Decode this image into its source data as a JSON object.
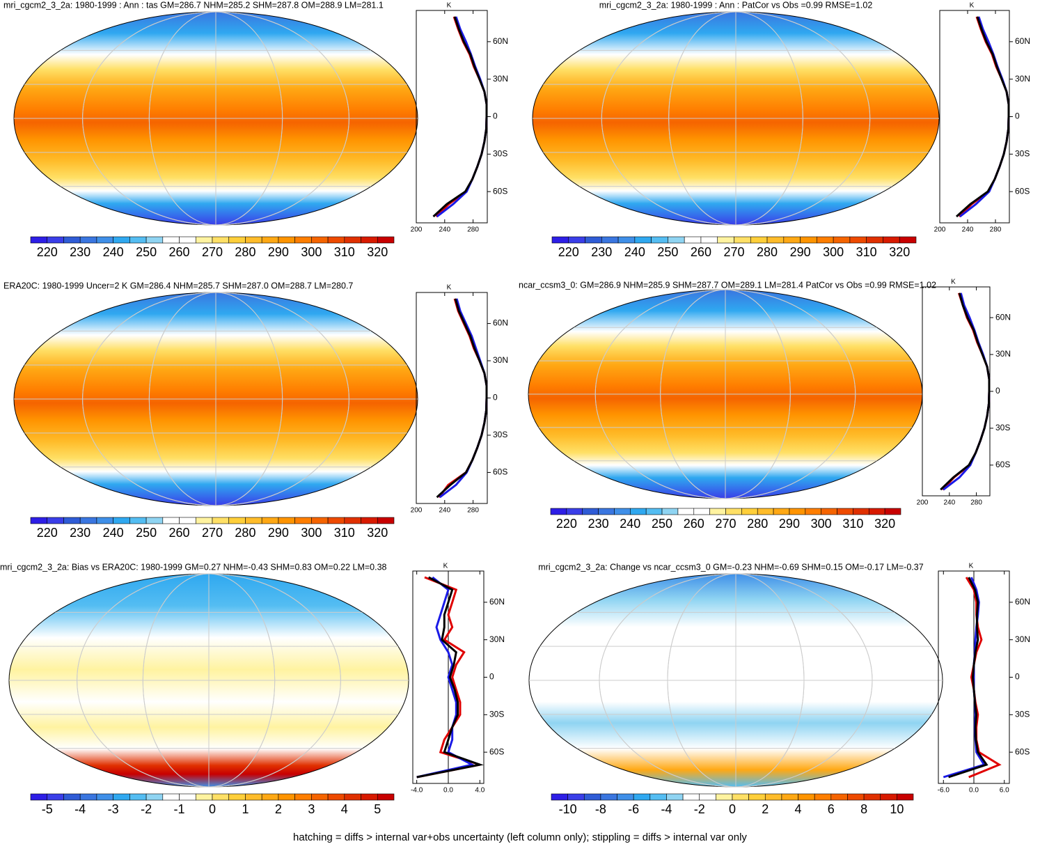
{
  "chart_data": [
    {
      "type": "line",
      "title": "mri_cgcm2_3_2a: 1980-1999 : Ann : tas GM=286.7 NHM=285.2 SHM=287.8 OM=288.9 LM=281.1",
      "ylabel": "K",
      "x": [
        -80,
        -70,
        -60,
        -50,
        -40,
        -30,
        -20,
        -10,
        0,
        10,
        20,
        30,
        40,
        50,
        60,
        70,
        80
      ],
      "series": [
        {
          "color": "#e00000",
          "values": [
            228,
            246,
            270,
            279,
            286,
            292,
            296,
            298.5,
            299,
            299,
            296,
            289,
            281,
            275,
            266,
            259,
            253
          ]
        },
        {
          "color": "#1a1ae6",
          "values": [
            229,
            252,
            271,
            279,
            286,
            292,
            296,
            298.5,
            299,
            299,
            296,
            290,
            283,
            277,
            270,
            262,
            256
          ]
        },
        {
          "color": "#000000",
          "values": [
            224,
            243,
            269,
            279,
            286,
            292,
            296,
            298.5,
            299,
            299,
            296,
            289,
            282,
            276,
            267,
            260,
            254
          ]
        }
      ],
      "xlim": [
        -85,
        85
      ],
      "xticks": [
        {
          "value": -60,
          "label": "60S"
        },
        {
          "value": -30,
          "label": "30S"
        },
        0,
        {
          "value": 30,
          "label": "30N"
        },
        {
          "value": 60,
          "label": "60N"
        }
      ],
      "ylim": [
        200,
        300
      ],
      "yticks": [
        200,
        240,
        280
      ],
      "colorbar": {
        "ticks": [
          220,
          230,
          240,
          250,
          260,
          270,
          280,
          290,
          300,
          310,
          320
        ],
        "colors": [
          "#2d1ee6",
          "#3a3ee8",
          "#2f5cd6",
          "#3a76e0",
          "#3f8fe8",
          "#2fa8f0",
          "#54bdf2",
          "#8fd4f2",
          "#ffffff",
          "#ffffff",
          "#fff3a0",
          "#ffe066",
          "#ffcf3a",
          "#ffbc2a",
          "#ffa814",
          "#ff9400",
          "#ff7e00",
          "#f56400",
          "#ee4a00",
          "#e03000",
          "#d81a00",
          "#c80000"
        ]
      }
    },
    {
      "type": "line",
      "title": "mri_cgcm2_3_2a: 1980-1999 : Ann : PatCor vs Obs =0.99 RMSE=1.02",
      "ylabel": "K",
      "x": [
        -80,
        -70,
        -60,
        -50,
        -40,
        -30,
        -20,
        -10,
        0,
        10,
        20,
        30,
        40,
        50,
        60,
        70,
        80
      ],
      "series": [
        {
          "color": "#e00000",
          "values": [
            228,
            246,
            270,
            279,
            286,
            292,
            296,
            298.5,
            299,
            299,
            296,
            289,
            281,
            275,
            266,
            259,
            253
          ]
        },
        {
          "color": "#1a1ae6",
          "values": [
            229,
            252,
            271,
            279,
            286,
            292,
            296,
            298.5,
            299,
            299,
            296,
            290,
            283,
            277,
            270,
            262,
            256
          ]
        },
        {
          "color": "#000000",
          "values": [
            224,
            244,
            269,
            279,
            286,
            292,
            296,
            298.5,
            299,
            299,
            296,
            289,
            282,
            276,
            267,
            260,
            254
          ]
        }
      ],
      "xlim": [
        -85,
        85
      ],
      "xticks": [
        {
          "value": -60,
          "label": "60S"
        },
        {
          "value": -30,
          "label": "30S"
        },
        0,
        {
          "value": 30,
          "label": "30N"
        },
        {
          "value": 60,
          "label": "60N"
        }
      ],
      "ylim": [
        200,
        300
      ],
      "yticks": [
        200,
        240,
        280
      ],
      "colorbar": {
        "ticks": [
          220,
          230,
          240,
          250,
          260,
          270,
          280,
          290,
          300,
          310,
          320
        ],
        "colors": [
          "#2d1ee6",
          "#3a3ee8",
          "#2f5cd6",
          "#3a76e0",
          "#3f8fe8",
          "#2fa8f0",
          "#54bdf2",
          "#8fd4f2",
          "#ffffff",
          "#ffffff",
          "#fff3a0",
          "#ffe066",
          "#ffcf3a",
          "#ffbc2a",
          "#ffa814",
          "#ff9400",
          "#ff7e00",
          "#f56400",
          "#ee4a00",
          "#e03000",
          "#d81a00",
          "#c80000"
        ]
      }
    },
    {
      "type": "line",
      "title": "ERA20C: 1980-1999 Uncer=2 K GM=286.4 NHM=285.7 SHM=287.0 OM=288.7 LM=280.7",
      "ylabel": "K",
      "x": [
        -80,
        -70,
        -60,
        -50,
        -40,
        -30,
        -20,
        -10,
        0,
        10,
        20,
        30,
        40,
        50,
        60,
        70,
        80
      ],
      "series": [
        {
          "color": "#e00000",
          "values": [
            232,
            245,
            270,
            279,
            286,
            292,
            296,
            298.5,
            299,
            299,
            296,
            289,
            281,
            275,
            267,
            259,
            254
          ]
        },
        {
          "color": "#1a1ae6",
          "values": [
            233,
            256,
            271,
            279,
            286,
            292,
            296,
            298.5,
            299,
            299,
            296,
            290,
            284,
            278,
            270,
            262,
            257
          ]
        },
        {
          "color": "#000000",
          "values": [
            229,
            248,
            270,
            279,
            286,
            292,
            296,
            298.5,
            299,
            299,
            296,
            289,
            282,
            276,
            268,
            260,
            255
          ]
        }
      ],
      "xlim": [
        -85,
        85
      ],
      "xticks": [
        {
          "value": -60,
          "label": "60S"
        },
        {
          "value": -30,
          "label": "30S"
        },
        0,
        {
          "value": 30,
          "label": "30N"
        },
        {
          "value": 60,
          "label": "60N"
        }
      ],
      "ylim": [
        200,
        300
      ],
      "yticks": [
        200,
        240,
        280
      ],
      "colorbar": {
        "ticks": [
          220,
          230,
          240,
          250,
          260,
          270,
          280,
          290,
          300,
          310,
          320
        ],
        "colors": [
          "#2d1ee6",
          "#3a3ee8",
          "#2f5cd6",
          "#3a76e0",
          "#3f8fe8",
          "#2fa8f0",
          "#54bdf2",
          "#8fd4f2",
          "#ffffff",
          "#ffffff",
          "#fff3a0",
          "#ffe066",
          "#ffcf3a",
          "#ffbc2a",
          "#ffa814",
          "#ff9400",
          "#ff7e00",
          "#f56400",
          "#ee4a00",
          "#e03000",
          "#d81a00",
          "#c80000"
        ]
      }
    },
    {
      "type": "line",
      "title": "ncar_ccsm3_0: GM=286.9 NHM=285.9 SHM=287.7 OM=289.1 LM=281.4 PatCor vs Obs =0.99 RMSE=1.02",
      "ylabel": "K",
      "x": [
        -80,
        -70,
        -60,
        -50,
        -40,
        -30,
        -20,
        -10,
        0,
        10,
        20,
        30,
        40,
        50,
        60,
        70,
        80
      ],
      "series": [
        {
          "color": "#e00000",
          "values": [
            230,
            247,
            270,
            279,
            286,
            292,
            296,
            298.5,
            299,
            299,
            296,
            289,
            281,
            275,
            266,
            260,
            254
          ]
        },
        {
          "color": "#1a1ae6",
          "values": [
            231,
            255,
            271,
            279,
            286,
            292,
            296,
            298.5,
            299,
            299,
            296,
            290,
            283,
            277,
            270,
            262,
            257
          ]
        },
        {
          "color": "#000000",
          "values": [
            227,
            246,
            269,
            279,
            286,
            292,
            296,
            298.5,
            299,
            299,
            296,
            289,
            282,
            276,
            267,
            260,
            255
          ]
        }
      ],
      "xlim": [
        -85,
        85
      ],
      "xticks": [
        {
          "value": -60,
          "label": "60S"
        },
        {
          "value": -30,
          "label": "30S"
        },
        0,
        {
          "value": 30,
          "label": "30N"
        },
        {
          "value": 60,
          "label": "60N"
        }
      ],
      "ylim": [
        200,
        300
      ],
      "yticks": [
        200,
        240,
        280
      ],
      "colorbar": {
        "ticks": [
          220,
          230,
          240,
          250,
          260,
          270,
          280,
          290,
          300,
          310,
          320
        ],
        "colors": [
          "#2d1ee6",
          "#3a3ee8",
          "#2f5cd6",
          "#3a76e0",
          "#3f8fe8",
          "#2fa8f0",
          "#54bdf2",
          "#8fd4f2",
          "#ffffff",
          "#ffffff",
          "#fff3a0",
          "#ffe066",
          "#ffcf3a",
          "#ffbc2a",
          "#ffa814",
          "#ff9400",
          "#ff7e00",
          "#f56400",
          "#ee4a00",
          "#e03000",
          "#d81a00",
          "#c80000"
        ]
      }
    },
    {
      "type": "line",
      "title": "mri_cgcm2_3_2a: Bias vs ERA20C: 1980-1999 GM=0.27 NHM=-0.43 SHM=0.83 OM=0.22 LM=0.38",
      "ylabel": "K",
      "x": [
        -80,
        -70,
        -60,
        -50,
        -40,
        -30,
        -20,
        -10,
        0,
        10,
        20,
        30,
        40,
        50,
        60,
        70,
        80
      ],
      "series": [
        {
          "color": "#e00000",
          "values": [
            -4,
            4,
            -1,
            -0.5,
            0.5,
            1.5,
            1.5,
            1,
            0.5,
            1,
            2,
            -0.5,
            0.5,
            0,
            0.5,
            1,
            -3
          ]
        },
        {
          "color": "#1a1ae6",
          "values": [
            -4,
            3,
            0,
            0.5,
            0.5,
            1,
            1,
            0.5,
            0,
            0.5,
            0,
            -1,
            -1.5,
            -1,
            -0.5,
            0,
            -2
          ]
        },
        {
          "color": "#000000",
          "values": [
            -4,
            4,
            -0.5,
            0,
            0.5,
            1.2,
            1.2,
            0.8,
            0.2,
            0.7,
            1,
            -0.8,
            -0.5,
            -0.5,
            0,
            0.5,
            -2.5
          ]
        }
      ],
      "xlim": [
        -85,
        85
      ],
      "xticks": [
        {
          "value": -60,
          "label": "60S"
        },
        {
          "value": -30,
          "label": "30S"
        },
        0,
        {
          "value": 30,
          "label": "30N"
        },
        {
          "value": 60,
          "label": "60N"
        }
      ],
      "ylim": [
        -4.5,
        4.5
      ],
      "yticks": [
        {
          "value": -4,
          "label": "-4.0"
        },
        {
          "value": 0,
          "label": "0.0"
        },
        {
          "value": 4,
          "label": "4.0"
        }
      ],
      "colorbar": {
        "ticks": [
          -5,
          -4,
          -3,
          -2,
          -1,
          0,
          1,
          2,
          3,
          4,
          5
        ],
        "colors": [
          "#2d1ee6",
          "#3a3ee8",
          "#2f5cd6",
          "#3a76e0",
          "#3f8fe8",
          "#2fa8f0",
          "#54bdf2",
          "#8fd4f2",
          "#ffffff",
          "#ffffff",
          "#fff3a0",
          "#ffe066",
          "#ffcf3a",
          "#ffbc2a",
          "#ffa814",
          "#ff9400",
          "#ff7e00",
          "#f56400",
          "#ee4a00",
          "#e03000",
          "#d81a00",
          "#c80000"
        ]
      }
    },
    {
      "type": "line",
      "title": "mri_cgcm2_3_2a: Change vs ncar_ccsm3_0 GM=-0.23 NHM=-0.69 SHM=0.15 OM=-0.17 LM=-0.37",
      "ylabel": "K",
      "x": [
        -80,
        -70,
        -60,
        -50,
        -40,
        -30,
        -20,
        -10,
        0,
        10,
        20,
        30,
        40,
        50,
        60,
        70,
        80
      ],
      "series": [
        {
          "color": "#e00000",
          "values": [
            -1,
            5,
            1,
            0.5,
            0.5,
            0.8,
            0.3,
            0,
            -0.5,
            0,
            0.5,
            1.5,
            0.8,
            0.5,
            0.5,
            0,
            -1.5
          ]
        },
        {
          "color": "#1a1ae6",
          "values": [
            -6,
            2,
            0.5,
            0.3,
            0.2,
            0.3,
            0.2,
            0,
            0,
            0,
            0.2,
            0.3,
            0.5,
            0.8,
            1,
            0.5,
            -0.5
          ]
        },
        {
          "color": "#000000",
          "values": [
            -5,
            2.5,
            0.8,
            0.4,
            0.3,
            0.5,
            0.2,
            0,
            -0.2,
            0,
            0.3,
            0.8,
            0.6,
            0.6,
            0.8,
            0.2,
            -1
          ]
        }
      ],
      "xlim": [
        -85,
        85
      ],
      "xticks": [
        {
          "value": -60,
          "label": "60S"
        },
        {
          "value": -30,
          "label": "30S"
        },
        0,
        {
          "value": 30,
          "label": "30N"
        },
        {
          "value": 60,
          "label": "60N"
        }
      ],
      "ylim": [
        -7,
        7
      ],
      "yticks": [
        {
          "value": -6,
          "label": "-6.0"
        },
        {
          "value": 0,
          "label": "0.0"
        },
        {
          "value": 6,
          "label": "6.0"
        }
      ],
      "colorbar": {
        "ticks": [
          -10,
          -8,
          -6,
          -4,
          -2,
          0,
          2,
          4,
          6,
          8,
          10
        ],
        "colors": [
          "#2d1ee6",
          "#3a3ee8",
          "#2f5cd6",
          "#3a76e0",
          "#3f8fe8",
          "#2fa8f0",
          "#54bdf2",
          "#8fd4f2",
          "#ffffff",
          "#ffffff",
          "#fff3a0",
          "#ffe066",
          "#ffcf3a",
          "#ffbc2a",
          "#ffa814",
          "#ff9400",
          "#ff7e00",
          "#f56400",
          "#ee4a00",
          "#e03000",
          "#d81a00",
          "#c80000"
        ]
      }
    }
  ],
  "footnote": "hatching = diffs > internal var+obs uncertainty (left column only); stippling = diffs > internal var only"
}
